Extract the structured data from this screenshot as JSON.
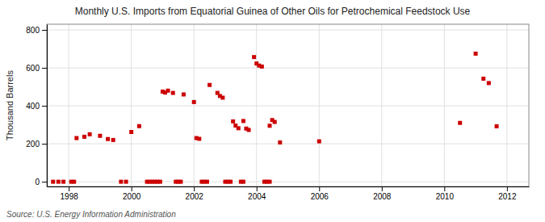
{
  "chart_data": {
    "type": "scatter",
    "title": "Monthly U.S. Imports from Equatorial Guinea of Other Oils for Petrochemical Feedstock Use",
    "ylabel": "Thousand Barrels",
    "annotations": [
      "Source: U.S. Energy Information Administration"
    ],
    "color": "#cc0000",
    "marker": "square",
    "grid": true,
    "xlim": [
      1997.3,
      2012.7
    ],
    "ylim": [
      -25,
      830
    ],
    "xticks": [
      1998,
      2000,
      2002,
      2004,
      2006,
      2008,
      2010,
      2012
    ],
    "yticks": [
      0,
      200,
      400,
      600,
      800
    ],
    "x": [
      1998.25,
      1998.5,
      1998.67,
      1999.0,
      1999.25,
      1999.42,
      2000.0,
      2000.25,
      2001.0,
      2001.08,
      2001.17,
      2001.33,
      2001.67,
      2002.0,
      2002.08,
      2002.17,
      2002.5,
      2002.75,
      2002.83,
      2002.92,
      2003.25,
      2003.33,
      2003.42,
      2003.58,
      2003.67,
      2003.75,
      2003.92,
      2004.0,
      2004.08,
      2004.17,
      2004.42,
      2004.5,
      2004.58,
      2004.75,
      2006.0,
      2010.5,
      2011.0,
      2011.25,
      2011.42,
      2011.67,
      1997.5,
      1997.67,
      1997.83,
      1998.08,
      1998.17,
      1999.67,
      1999.83,
      2000.5,
      2000.58,
      2000.67,
      2000.75,
      2000.83,
      2000.92,
      2001.42,
      2001.5,
      2001.58,
      2002.25,
      2002.33,
      2002.42,
      2003.0,
      2003.08,
      2003.17,
      2003.5,
      2003.58,
      2004.25,
      2004.33,
      2004.42
    ],
    "values": [
      230,
      237,
      250,
      242,
      225,
      220,
      262,
      293,
      475,
      470,
      480,
      468,
      460,
      420,
      230,
      226,
      510,
      468,
      452,
      443,
      318,
      296,
      282,
      320,
      280,
      273,
      657,
      623,
      612,
      607,
      295,
      325,
      315,
      207,
      213,
      310,
      675,
      543,
      520,
      292,
      0,
      0,
      0,
      0,
      0,
      0,
      0,
      0,
      0,
      0,
      0,
      0,
      0,
      0,
      0,
      0,
      0,
      0,
      0,
      0,
      0,
      0,
      0,
      0,
      0,
      0,
      0
    ]
  }
}
